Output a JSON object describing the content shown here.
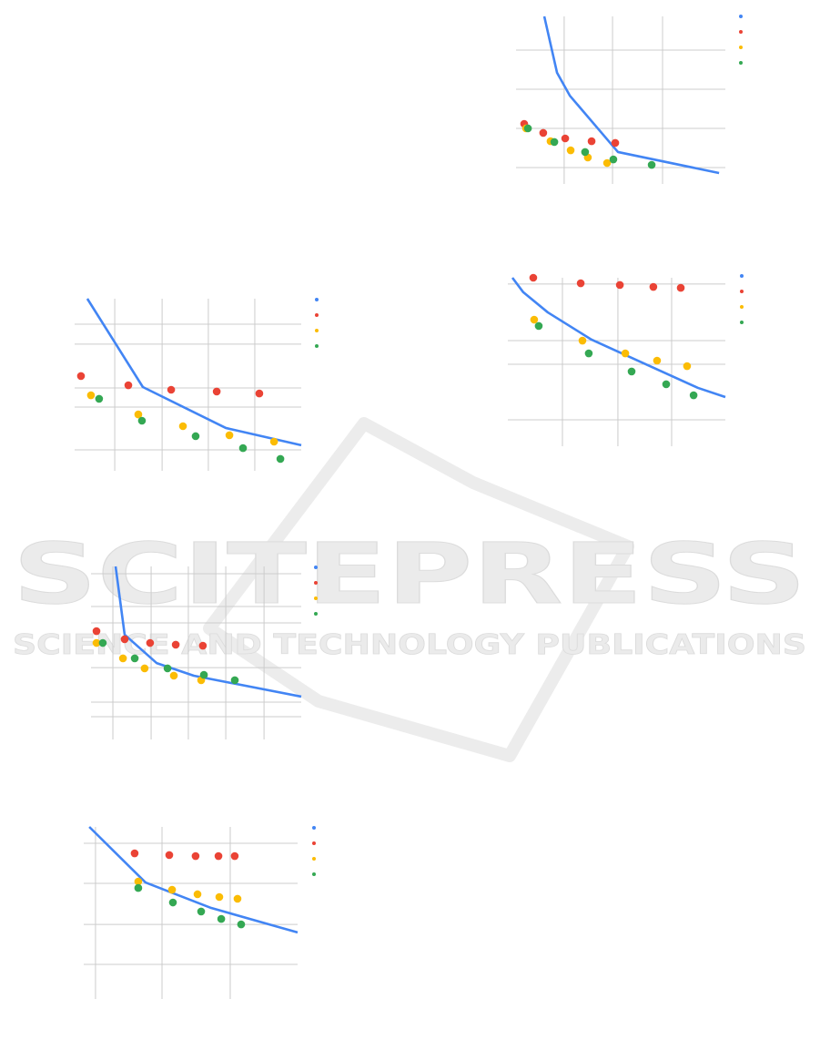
{
  "watermark": {
    "title": "SCITEPRESS",
    "subtitle": "SCIENCE AND TECHNOLOGY PUBLICATIONS"
  },
  "chart_data": [
    {
      "type": "scatter",
      "xlim": [
        0,
        10
      ],
      "ylim": [
        0,
        10
      ],
      "xticks": [
        2.3,
        4.61,
        7.0
      ],
      "yticks": [
        0.35,
        2.85,
        5.35,
        7.85
      ],
      "grid": true,
      "series": [
        {
          "mode": "line",
          "color": "#4285f4",
          "x": [
            1.35,
            1.96,
            2.57,
            4.87,
            9.7
          ],
          "values": [
            10,
            6.4,
            4.94,
            1.34,
            0
          ]
        },
        {
          "mode": "points",
          "color": "#ea4335",
          "x": [
            0.39,
            1.3,
            2.35,
            3.61,
            4.74
          ],
          "values": [
            3.14,
            2.56,
            2.21,
            2.03,
            1.92
          ]
        },
        {
          "mode": "points",
          "color": "#fbbc04",
          "x": [
            0.48,
            1.65,
            2.61,
            3.43,
            4.35
          ],
          "values": [
            2.85,
            2.03,
            1.45,
            0.99,
            0.64
          ]
        },
        {
          "mode": "points",
          "color": "#34a853",
          "x": [
            0.57,
            1.83,
            3.3,
            4.65,
            6.48
          ],
          "values": [
            2.85,
            1.98,
            1.34,
            0.87,
            0.52
          ]
        }
      ]
    },
    {
      "type": "scatter",
      "xlim": [
        0,
        10
      ],
      "ylim": [
        0,
        10
      ],
      "xticks": [
        2.51,
        5.06,
        7.53
      ],
      "yticks": [
        0.98,
        4.51,
        6.01,
        9.6
      ],
      "grid": true,
      "series": [
        {
          "mode": "line",
          "color": "#4285f4",
          "x": [
            0.21,
            0.71,
            1.84,
            3.85,
            8.74,
            10
          ],
          "values": [
            10,
            9.08,
            7.8,
            6.07,
            3.01,
            2.43
          ]
        },
        {
          "mode": "points",
          "color": "#ea4335",
          "x": [
            1.17,
            3.35,
            5.15,
            6.69,
            7.95
          ],
          "values": [
            10,
            9.65,
            9.54,
            9.42,
            9.36
          ]
        },
        {
          "mode": "points",
          "color": "#fbbc04",
          "x": [
            1.21,
            3.43,
            5.4,
            6.86,
            8.24
          ],
          "values": [
            7.34,
            6.01,
            5.2,
            4.74,
            4.39
          ]
        },
        {
          "mode": "points",
          "color": "#34a853",
          "x": [
            1.42,
            3.72,
            5.69,
            7.28,
            8.54
          ],
          "values": [
            6.94,
            5.2,
            4.05,
            3.24,
            2.54
          ]
        }
      ]
    },
    {
      "type": "scatter",
      "xlim": [
        0,
        10
      ],
      "ylim": [
        0,
        10
      ],
      "xticks": [
        1.77,
        3.86,
        5.9,
        7.95
      ],
      "yticks": [
        0.62,
        3.28,
        4.46,
        7.18,
        8.42
      ],
      "grid": true,
      "series": [
        {
          "mode": "line",
          "color": "#4285f4",
          "x": [
            0.56,
            3.01,
            6.67,
            10
          ],
          "values": [
            10,
            4.52,
            1.98,
            0.91
          ]
        },
        {
          "mode": "points",
          "color": "#ea4335",
          "x": [
            0.28,
            2.37,
            4.26,
            6.27,
            8.15
          ],
          "values": [
            5.2,
            4.63,
            4.35,
            4.24,
            4.12
          ]
        },
        {
          "mode": "points",
          "color": "#fbbc04",
          "x": [
            0.72,
            2.81,
            4.78,
            6.83,
            8.8
          ],
          "values": [
            4.01,
            2.82,
            2.09,
            1.53,
            1.13
          ]
        },
        {
          "mode": "points",
          "color": "#34a853",
          "x": [
            1.08,
            2.97,
            5.34,
            7.43,
            9.08
          ],
          "values": [
            3.79,
            2.43,
            1.47,
            0.73,
            0.06
          ]
        }
      ]
    },
    {
      "type": "scatter",
      "xlim": [
        0,
        10
      ],
      "ylim": [
        0,
        10
      ],
      "xticks": [
        1.04,
        2.86,
        4.63,
        6.41,
        8.23
      ],
      "yticks": [
        0.73,
        1.63,
        3.76,
        6.52,
        7.53,
        9.55
      ],
      "grid": true,
      "series": [
        {
          "mode": "line",
          "color": "#4285f4",
          "x": [
            1.17,
            1.6,
            3.12,
            4.89,
            10
          ],
          "values": [
            10,
            5.79,
            4.04,
            3.26,
            1.97
          ]
        },
        {
          "mode": "points",
          "color": "#ea4335",
          "x": [
            0.26,
            1.6,
            2.81,
            4.03,
            5.32
          ],
          "values": [
            6.01,
            5.51,
            5.28,
            5.17,
            5.11
          ]
        },
        {
          "mode": "points",
          "color": "#fbbc04",
          "x": [
            0.26,
            1.52,
            2.55,
            3.94,
            5.24
          ],
          "values": [
            5.28,
            4.33,
            3.71,
            3.26,
            2.98
          ]
        },
        {
          "mode": "points",
          "color": "#34a853",
          "x": [
            0.56,
            2.08,
            3.64,
            5.37,
            6.84
          ],
          "values": [
            5.28,
            4.33,
            3.71,
            3.31,
            2.98
          ]
        }
      ]
    },
    {
      "type": "scatter",
      "xlim": [
        0,
        10
      ],
      "ylim": [
        0,
        10
      ],
      "xticks": [
        0.55,
        3.66,
        6.85
      ],
      "yticks": [
        1.47,
        3.95,
        6.5,
        8.98
      ],
      "grid": true,
      "series": [
        {
          "mode": "line",
          "color": "#4285f4",
          "x": [
            0.26,
            2.89,
            5.96,
            10
          ],
          "values": [
            10,
            6.55,
            4.97,
            3.45
          ]
        },
        {
          "mode": "points",
          "color": "#ea4335",
          "x": [
            2.38,
            4.0,
            5.23,
            6.3,
            7.06
          ],
          "values": [
            8.36,
            8.25,
            8.19,
            8.19,
            8.19
          ]
        },
        {
          "mode": "points",
          "color": "#fbbc04",
          "x": [
            2.55,
            4.13,
            5.32,
            6.34,
            7.19
          ],
          "values": [
            6.61,
            6.1,
            5.82,
            5.65,
            5.54
          ]
        },
        {
          "mode": "points",
          "color": "#34a853",
          "x": [
            2.55,
            4.17,
            5.49,
            6.43,
            7.36
          ],
          "values": [
            6.21,
            5.31,
            4.75,
            4.29,
            3.95
          ]
        }
      ]
    }
  ]
}
